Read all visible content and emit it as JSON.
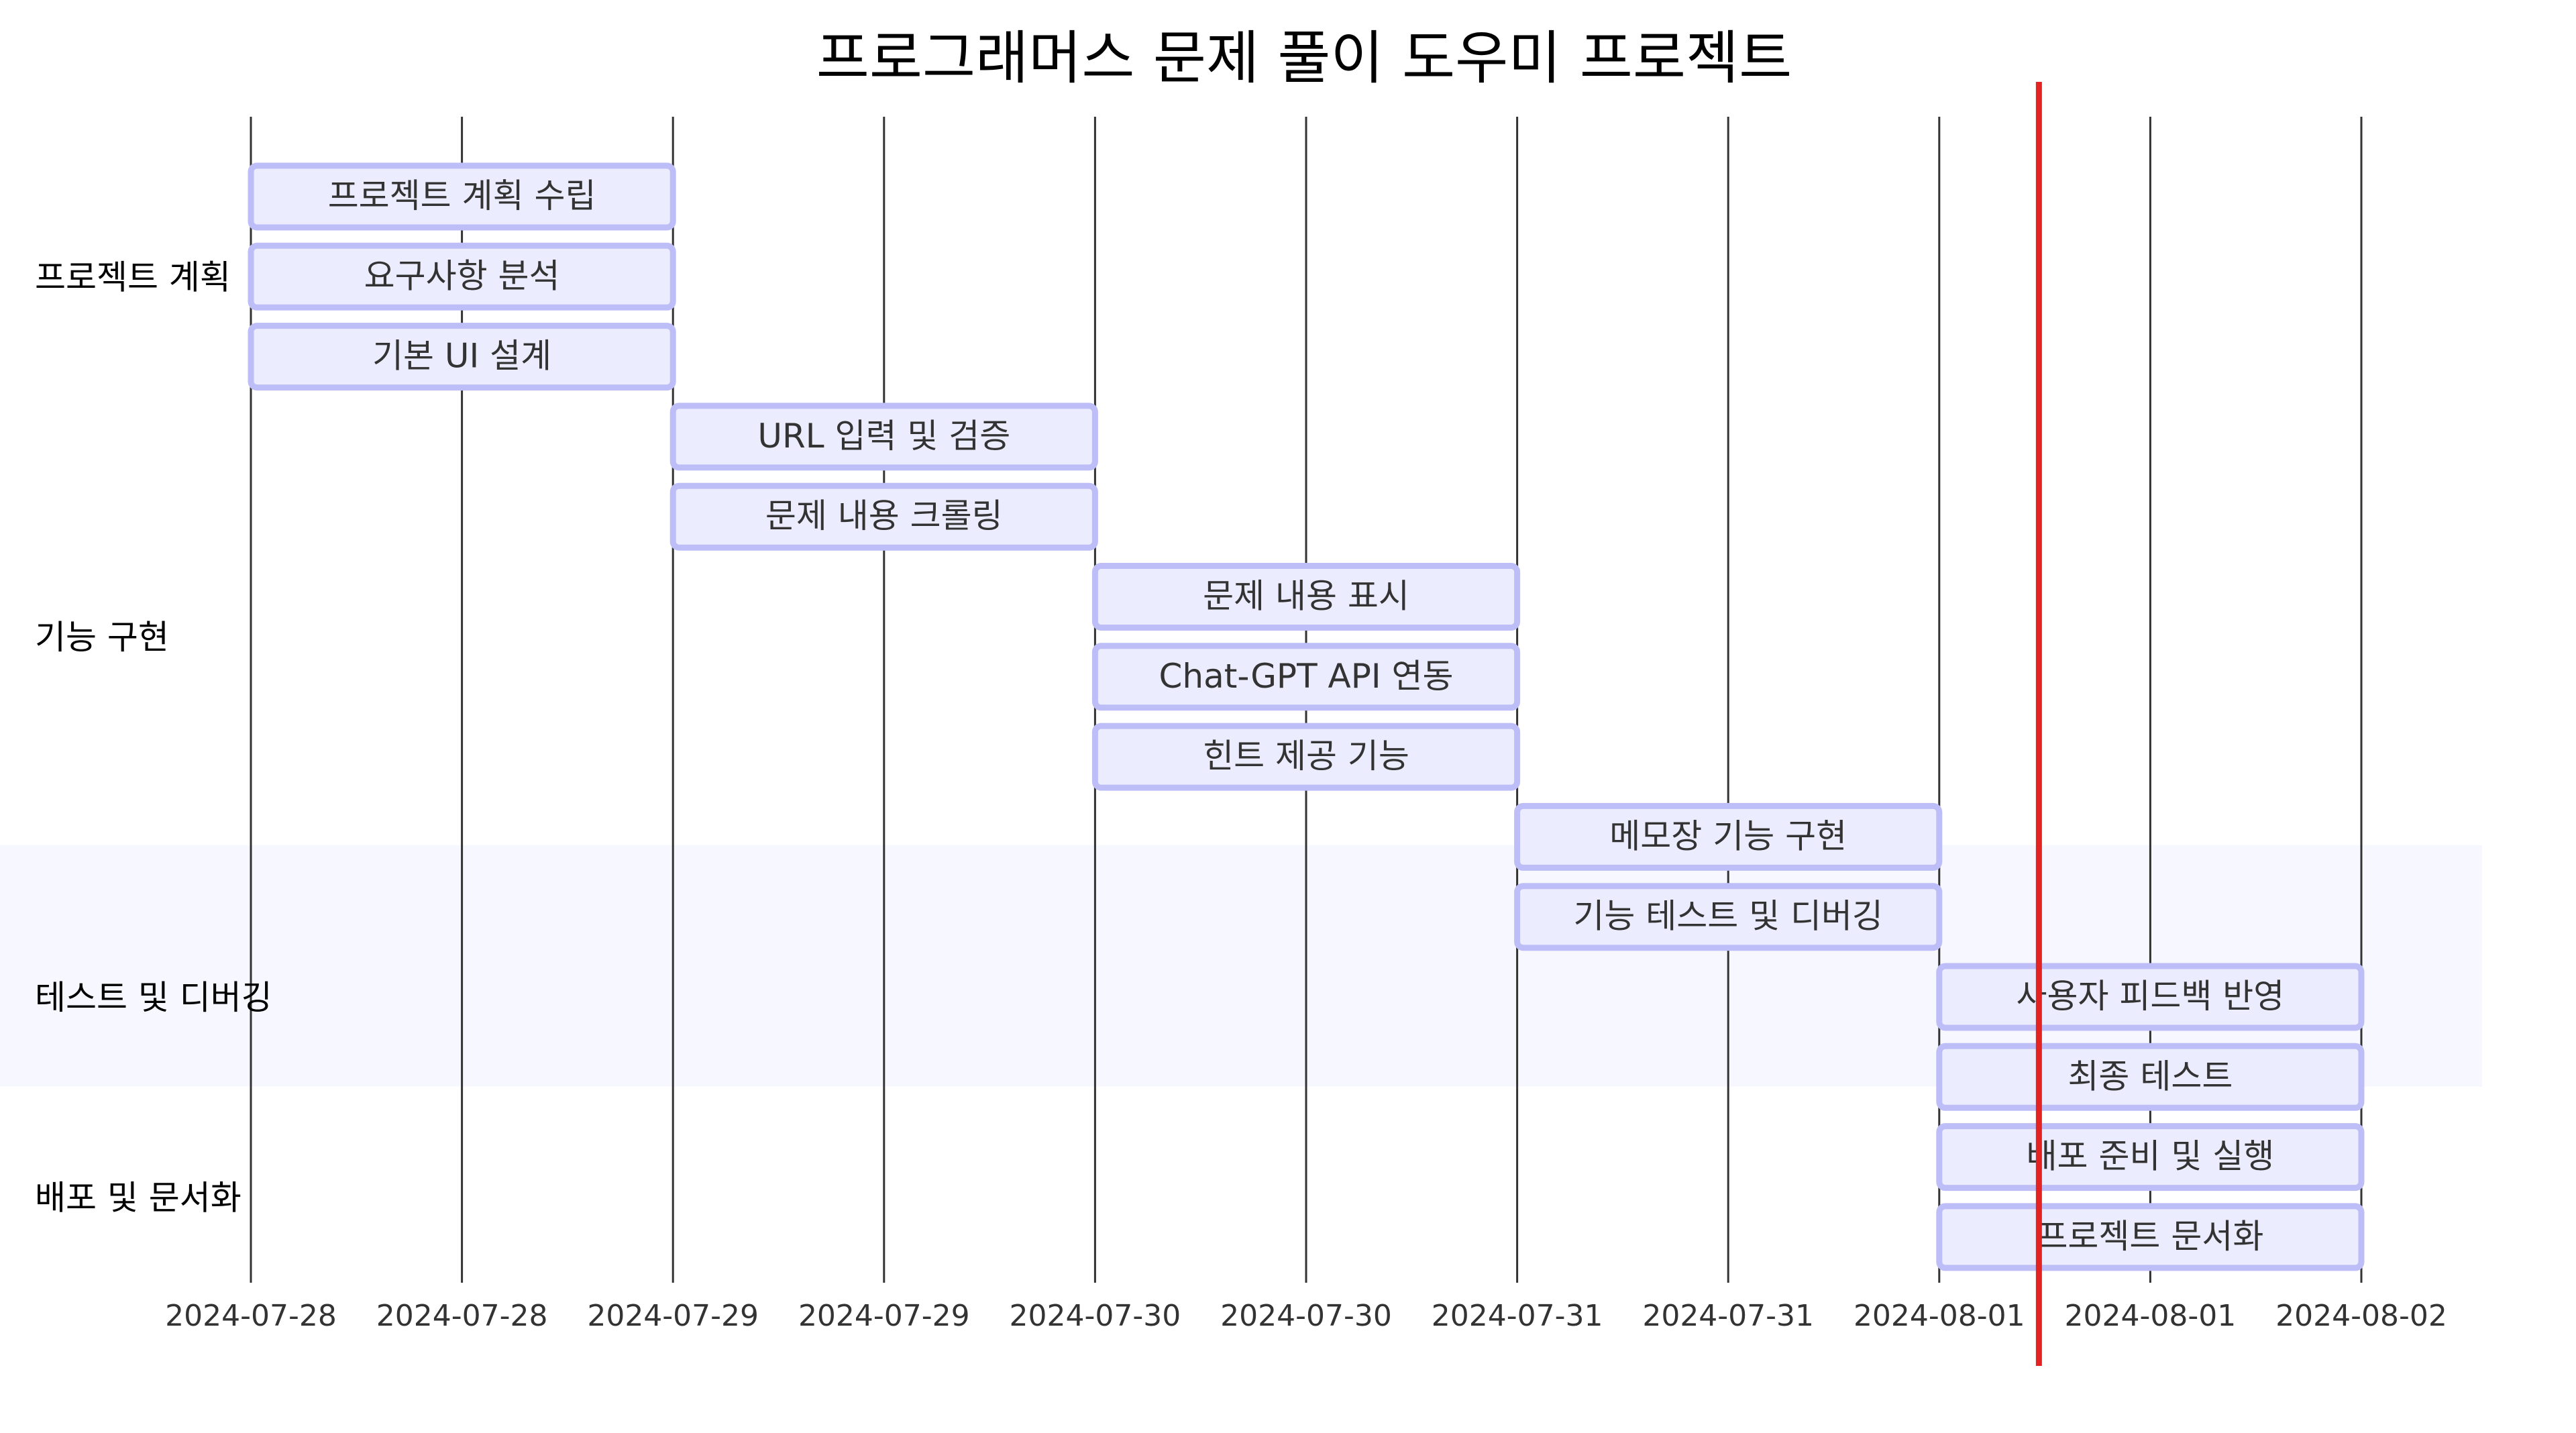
{
  "chart_data": {
    "type": "gantt",
    "title": "프로그래머스 문제 풀이 도우미 프로젝트",
    "x_ticks": [
      "2024-07-28",
      "2024-07-28",
      "2024-07-29",
      "2024-07-29",
      "2024-07-30",
      "2024-07-30",
      "2024-07-31",
      "2024-07-31",
      "2024-08-01",
      "2024-08-01",
      "2024-08-02"
    ],
    "x_range": [
      "2024-07-28T00:00",
      "2024-08-02T00:00"
    ],
    "today_marker": "2024-08-01T05:40",
    "sections": [
      {
        "name": "프로젝트 계획",
        "tasks": [
          {
            "name": "프로젝트 계획 수립",
            "start": "2024-07-28T00:00",
            "end": "2024-07-29T00:00"
          },
          {
            "name": "요구사항 분석",
            "start": "2024-07-28T00:00",
            "end": "2024-07-29T00:00"
          },
          {
            "name": "기본 UI 설계",
            "start": "2024-07-28T00:00",
            "end": "2024-07-29T00:00"
          }
        ]
      },
      {
        "name": "기능 구현",
        "tasks": [
          {
            "name": "URL 입력 및 검증",
            "start": "2024-07-29T00:00",
            "end": "2024-07-30T00:00"
          },
          {
            "name": "문제 내용 크롤링",
            "start": "2024-07-29T00:00",
            "end": "2024-07-30T00:00"
          },
          {
            "name": "문제 내용 표시",
            "start": "2024-07-30T00:00",
            "end": "2024-07-31T00:00"
          },
          {
            "name": "Chat-GPT API 연동",
            "start": "2024-07-30T00:00",
            "end": "2024-07-31T00:00"
          },
          {
            "name": "힌트 제공 기능",
            "start": "2024-07-30T00:00",
            "end": "2024-07-31T00:00"
          },
          {
            "name": "메모장 기능 구현",
            "start": "2024-07-31T00:00",
            "end": "2024-08-01T00:00"
          }
        ]
      },
      {
        "name": "테스트 및 디버깅",
        "tasks": [
          {
            "name": "기능 테스트 및 디버깅",
            "start": "2024-07-31T00:00",
            "end": "2024-08-01T00:00"
          },
          {
            "name": "사용자 피드백 반영",
            "start": "2024-08-01T00:00",
            "end": "2024-08-02T00:00"
          },
          {
            "name": "최종 테스트",
            "start": "2024-08-01T00:00",
            "end": "2024-08-02T00:00"
          }
        ]
      },
      {
        "name": "배포 및 문서화",
        "tasks": [
          {
            "name": "배포 준비 및 실행",
            "start": "2024-08-01T00:00",
            "end": "2024-08-02T00:00"
          },
          {
            "name": "프로젝트 문서화",
            "start": "2024-08-01T00:00",
            "end": "2024-08-02T00:00"
          }
        ]
      }
    ],
    "colors": {
      "bar_fill": "#ECECFF",
      "bar_stroke": "#BDBDF8",
      "grid": "#333333",
      "today_line": "#E32222",
      "section_band": "#F7F7FF"
    }
  }
}
